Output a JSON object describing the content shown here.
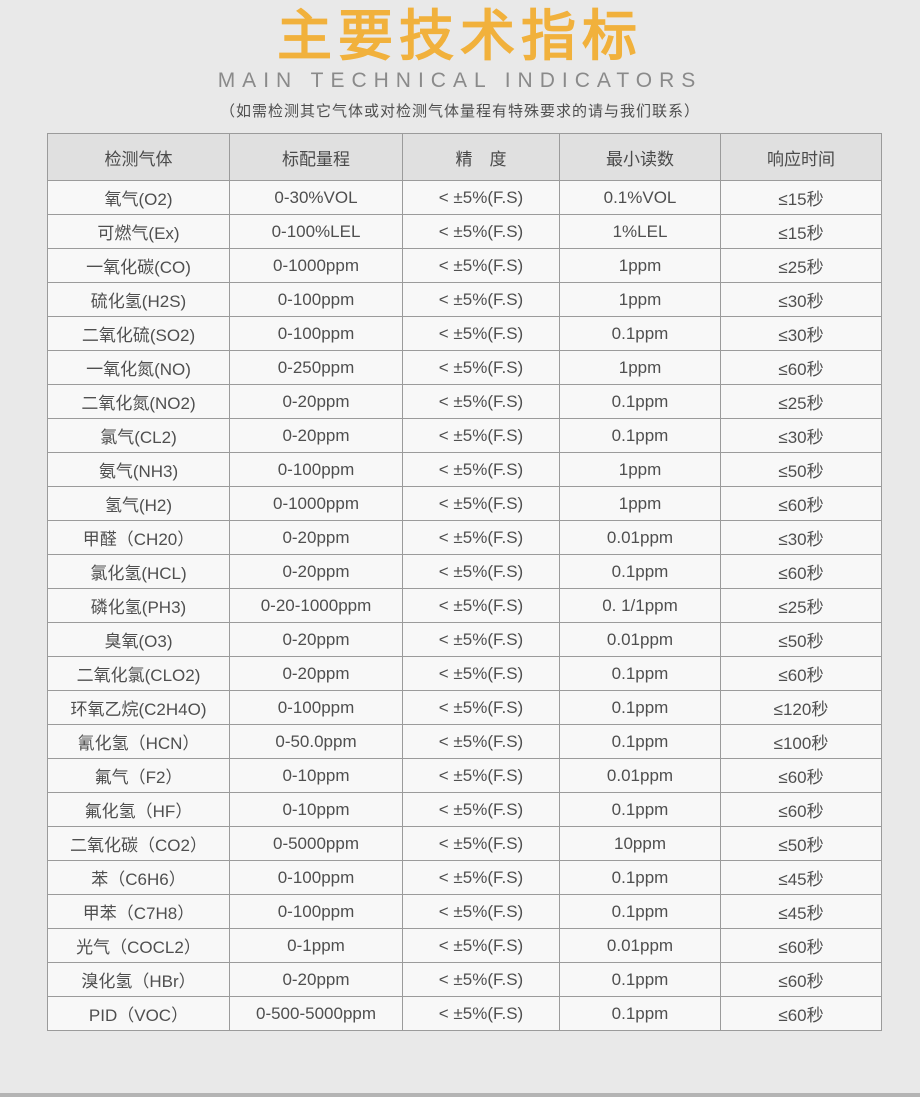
{
  "header": {
    "title": "主要技术指标",
    "subtitle": "MAIN TECHNICAL INDICATORS",
    "note": "（如需检测其它气体或对检测气体量程有特殊要求的请与我们联系）"
  },
  "table": {
    "columns": [
      "检测气体",
      "标配量程",
      "精　度",
      "最小读数",
      "响应时间"
    ],
    "rows": [
      [
        "氧气(O2)",
        "0-30%VOL",
        "< ±5%(F.S)",
        "0.1%VOL",
        "≤15秒"
      ],
      [
        "可燃气(Ex)",
        "0-100%LEL",
        "< ±5%(F.S)",
        "1%LEL",
        "≤15秒"
      ],
      [
        "一氧化碳(CO)",
        "0-1000ppm",
        "< ±5%(F.S)",
        "1ppm",
        "≤25秒"
      ],
      [
        "硫化氢(H2S)",
        "0-100ppm",
        "< ±5%(F.S)",
        "1ppm",
        "≤30秒"
      ],
      [
        "二氧化硫(SO2)",
        "0-100ppm",
        "< ±5%(F.S)",
        "0.1ppm",
        "≤30秒"
      ],
      [
        "一氧化氮(NO)",
        "0-250ppm",
        "< ±5%(F.S)",
        "1ppm",
        "≤60秒"
      ],
      [
        "二氧化氮(NO2)",
        "0-20ppm",
        "< ±5%(F.S)",
        "0.1ppm",
        "≤25秒"
      ],
      [
        "氯气(CL2)",
        "0-20ppm",
        "< ±5%(F.S)",
        "0.1ppm",
        "≤30秒"
      ],
      [
        "氨气(NH3)",
        "0-100ppm",
        "< ±5%(F.S)",
        "1ppm",
        "≤50秒"
      ],
      [
        "氢气(H2)",
        "0-1000ppm",
        "< ±5%(F.S)",
        "1ppm",
        "≤60秒"
      ],
      [
        "甲醛（CH20）",
        "0-20ppm",
        "< ±5%(F.S)",
        "0.01ppm",
        "≤30秒"
      ],
      [
        "氯化氢(HCL)",
        "0-20ppm",
        "< ±5%(F.S)",
        "0.1ppm",
        "≤60秒"
      ],
      [
        "磷化氢(PH3)",
        "0-20-1000ppm",
        "< ±5%(F.S)",
        "0. 1/1ppm",
        "≤25秒"
      ],
      [
        "臭氧(O3)",
        "0-20ppm",
        "< ±5%(F.S)",
        "0.01ppm",
        "≤50秒"
      ],
      [
        "二氧化氯(CLO2)",
        "0-20ppm",
        "< ±5%(F.S)",
        "0.1ppm",
        "≤60秒"
      ],
      [
        "环氧乙烷(C2H4O)",
        "0-100ppm",
        "< ±5%(F.S)",
        "0.1ppm",
        "≤120秒"
      ],
      [
        "氰化氢（HCN）",
        "0-50.0ppm",
        "< ±5%(F.S)",
        "0.1ppm",
        "≤100秒"
      ],
      [
        "氟气（F2）",
        "0-10ppm",
        "< ±5%(F.S)",
        "0.01ppm",
        "≤60秒"
      ],
      [
        "氟化氢（HF）",
        "0-10ppm",
        "< ±5%(F.S)",
        "0.1ppm",
        "≤60秒"
      ],
      [
        "二氧化碳（CO2）",
        "0-5000ppm",
        "< ±5%(F.S)",
        "10ppm",
        "≤50秒"
      ],
      [
        "苯（C6H6）",
        "0-100ppm",
        "< ±5%(F.S)",
        "0.1ppm",
        "≤45秒"
      ],
      [
        "甲苯（C7H8）",
        "0-100ppm",
        "< ±5%(F.S)",
        "0.1ppm",
        "≤45秒"
      ],
      [
        "光气（COCL2）",
        "0-1ppm",
        "< ±5%(F.S)",
        "0.01ppm",
        "≤60秒"
      ],
      [
        "溴化氢（HBr）",
        "0-20ppm",
        "< ±5%(F.S)",
        "0.1ppm",
        "≤60秒"
      ],
      [
        "PID（VOC）",
        "0-500-5000ppm",
        "< ±5%(F.S)",
        "0.1ppm",
        "≤60秒"
      ]
    ]
  },
  "colors": {
    "title": "#f1b13c",
    "page_background": "#e9e9e9",
    "table_header_background": "#e0e0e0",
    "table_cell_background": "#f8f8f8",
    "table_border": "#9b9b9b",
    "text": "#4f4f4f",
    "bottom_strip": "#b4b4b4"
  }
}
